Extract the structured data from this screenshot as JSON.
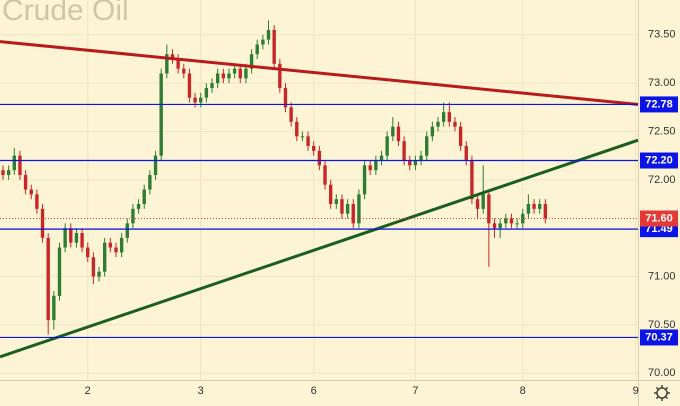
{
  "chart_data": {
    "type": "candlestick",
    "title": "Crude Oil",
    "open": [
      72.1,
      72.05,
      72.1,
      72.25,
      72.05,
      71.9,
      71.85,
      71.7,
      71.4,
      70.55,
      70.8,
      71.3,
      71.5,
      71.35,
      71.45,
      71.3,
      71.2,
      71.0,
      71.05,
      71.35,
      71.3,
      71.25,
      71.4,
      71.55,
      71.7,
      71.75,
      71.9,
      72.05,
      72.25,
      73.1,
      73.3,
      73.25,
      73.15,
      73.1,
      72.85,
      72.8,
      72.85,
      72.95,
      73.0,
      73.1,
      73.05,
      73.1,
      73.15,
      73.05,
      73.15,
      73.3,
      73.4,
      73.45,
      73.55,
      73.2,
      72.95,
      72.75,
      72.6,
      72.45,
      72.45,
      72.35,
      72.3,
      72.15,
      71.95,
      71.75,
      71.8,
      71.65,
      71.75,
      71.55,
      71.85,
      72.15,
      72.1,
      72.2,
      72.25,
      72.45,
      72.55,
      72.4,
      72.2,
      72.15,
      72.2,
      72.25,
      72.45,
      72.55,
      72.6,
      72.7,
      72.6,
      72.55,
      72.35,
      72.2,
      71.8,
      71.7,
      71.85,
      71.55,
      71.5,
      71.55,
      71.6,
      71.55,
      71.55,
      71.65,
      71.75,
      71.7,
      71.75
    ],
    "high": [
      72.15,
      72.15,
      72.33,
      72.3,
      72.1,
      71.95,
      71.9,
      71.75,
      71.45,
      70.85,
      71.35,
      71.55,
      71.55,
      71.5,
      71.5,
      71.35,
      71.25,
      71.1,
      71.4,
      71.4,
      71.35,
      71.45,
      71.6,
      71.75,
      71.8,
      71.95,
      72.1,
      72.3,
      73.15,
      73.4,
      73.35,
      73.3,
      73.2,
      73.15,
      72.9,
      72.9,
      73.0,
      73.05,
      73.15,
      73.15,
      73.15,
      73.2,
      73.2,
      73.2,
      73.35,
      73.45,
      73.5,
      73.65,
      73.6,
      73.25,
      73.0,
      72.8,
      72.65,
      72.5,
      72.5,
      72.4,
      72.35,
      72.2,
      72.0,
      71.85,
      71.85,
      71.8,
      71.8,
      71.9,
      72.2,
      72.2,
      72.25,
      72.3,
      72.5,
      72.65,
      72.6,
      72.45,
      72.25,
      72.25,
      72.3,
      72.5,
      72.6,
      72.65,
      72.8,
      72.8,
      72.65,
      72.6,
      72.4,
      72.25,
      71.85,
      72.15,
      71.9,
      71.6,
      71.6,
      71.65,
      71.65,
      71.6,
      71.7,
      71.85,
      71.8,
      71.8,
      71.8
    ],
    "low": [
      72.0,
      72.0,
      72.05,
      72.0,
      71.85,
      71.8,
      71.65,
      71.35,
      70.4,
      70.45,
      70.75,
      71.25,
      71.3,
      71.3,
      71.25,
      71.15,
      70.92,
      70.95,
      71.0,
      71.25,
      71.2,
      71.2,
      71.35,
      71.5,
      71.65,
      71.7,
      71.85,
      72.0,
      72.2,
      73.05,
      73.2,
      73.1,
      73.05,
      72.8,
      72.75,
      72.75,
      72.8,
      72.9,
      72.95,
      73.0,
      73.0,
      73.05,
      73.0,
      73.0,
      73.1,
      73.25,
      73.35,
      73.4,
      73.15,
      72.9,
      72.7,
      72.55,
      72.4,
      72.4,
      72.3,
      72.25,
      72.1,
      71.9,
      71.7,
      71.7,
      71.6,
      71.6,
      71.5,
      71.5,
      71.8,
      72.05,
      72.05,
      72.15,
      72.2,
      72.4,
      72.35,
      72.15,
      72.1,
      72.1,
      72.15,
      72.2,
      72.4,
      72.5,
      72.55,
      72.55,
      72.5,
      72.3,
      72.15,
      71.75,
      71.6,
      71.65,
      71.1,
      71.4,
      71.4,
      71.5,
      71.5,
      71.5,
      71.5,
      71.6,
      71.65,
      71.65,
      71.55
    ],
    "close": [
      72.05,
      72.1,
      72.25,
      72.05,
      71.9,
      71.85,
      71.7,
      71.4,
      70.55,
      70.8,
      71.3,
      71.5,
      71.35,
      71.45,
      71.3,
      71.2,
      71.0,
      71.05,
      71.35,
      71.3,
      71.25,
      71.4,
      71.55,
      71.7,
      71.75,
      71.9,
      72.05,
      72.25,
      73.1,
      73.3,
      73.25,
      73.15,
      73.1,
      72.85,
      72.8,
      72.85,
      72.95,
      73.0,
      73.1,
      73.05,
      73.1,
      73.15,
      73.05,
      73.15,
      73.3,
      73.4,
      73.45,
      73.55,
      73.2,
      72.95,
      72.75,
      72.6,
      72.45,
      72.45,
      72.35,
      72.3,
      72.15,
      71.95,
      71.75,
      71.8,
      71.65,
      71.75,
      71.55,
      71.85,
      72.15,
      72.1,
      72.2,
      72.25,
      72.45,
      72.55,
      72.4,
      72.2,
      72.15,
      72.2,
      72.25,
      72.45,
      72.55,
      72.6,
      72.7,
      72.6,
      72.55,
      72.35,
      72.2,
      71.8,
      71.7,
      71.85,
      71.55,
      71.5,
      71.55,
      71.6,
      71.55,
      71.55,
      71.65,
      71.75,
      71.7,
      71.75,
      71.6
    ],
    "up_color": "#2e7d32",
    "down_color": "#c62828",
    "xlim": [
      -0.53,
      112.4
    ],
    "xticks": [
      {
        "value": 15,
        "label": "2"
      },
      {
        "value": 35,
        "label": "3"
      },
      {
        "value": 55,
        "label": "6"
      },
      {
        "value": 73,
        "label": "7"
      },
      {
        "value": 92,
        "label": "8"
      },
      {
        "value": 112,
        "label": "9"
      }
    ],
    "ylim": [
      69.93,
      73.86
    ],
    "yticks": [
      {
        "value": 70,
        "label": "70.00"
      },
      {
        "value": 70.5,
        "label": "70.50"
      },
      {
        "value": 71,
        "label": "71.00"
      },
      {
        "value": 71.5,
        "label": "71.50"
      },
      {
        "value": 72,
        "label": "72.00"
      },
      {
        "value": 72.5,
        "label": "72.50"
      },
      {
        "value": 73,
        "label": "73.00"
      },
      {
        "value": 73.5,
        "label": "73.50"
      }
    ],
    "grid": true,
    "levels": [
      {
        "value": 72.78,
        "label": "72.78"
      },
      {
        "value": 72.2,
        "label": "72.20"
      },
      {
        "value": 71.49,
        "label": "71.49"
      },
      {
        "value": 70.37,
        "label": "70.37"
      }
    ],
    "level_color": "#0a14e6",
    "price_line": {
      "value": 71.6,
      "label": "71.60",
      "color": "#e53935"
    },
    "trendlines": [
      {
        "color": "#b71c1c",
        "x": [
          -0.53,
          112.4
        ],
        "y": [
          73.43,
          72.78
        ]
      },
      {
        "color": "#1b5e20",
        "x": [
          -0.53,
          112.4
        ],
        "y": [
          70.17,
          72.41
        ]
      }
    ]
  }
}
